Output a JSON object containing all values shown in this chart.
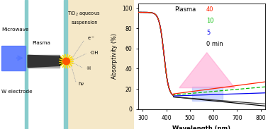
{
  "title_plasma": "Plasma",
  "legend_labels": [
    "40",
    "10",
    "5",
    "0 min"
  ],
  "legend_colors": [
    "#ff2200",
    "#00bb00",
    "#0000ee",
    "#000000"
  ],
  "xlabel": "Wavelength (nm)",
  "ylabel": "Absorptivity (%)",
  "xlim": [
    280,
    820
  ],
  "ylim": [
    0,
    105
  ],
  "yticks": [
    0,
    20,
    40,
    60,
    80,
    100
  ],
  "xticks": [
    300,
    400,
    500,
    600,
    700,
    800
  ],
  "bg_color": "#ffffff",
  "arrow_pink": "#ff99cc",
  "arrow_blue": "#aabbff",
  "left_bg": "#f5e8c8",
  "cyan_line": "#88cccc",
  "microwave_blue": "#5577ff",
  "electrode_gray": "#888888",
  "electrode_dark": "#222222",
  "plasma_orange": "#ff5500",
  "plasma_yellow": "#ffdd00"
}
